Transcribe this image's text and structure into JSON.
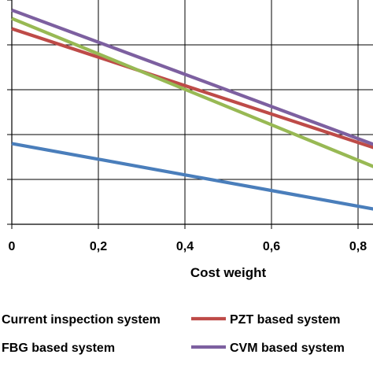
{
  "chart_data": {
    "type": "line",
    "title": "",
    "xlabel": "Cost weight",
    "ylabel": "",
    "x": [
      0,
      0.2,
      0.4,
      0.6,
      0.8,
      0.85
    ],
    "x_tick_labels": [
      "0",
      "0,2",
      "0,4",
      "0,6",
      "0,8"
    ],
    "xlim": [
      0,
      0.85
    ],
    "ylim": [
      0,
      1.0
    ],
    "grid": true,
    "legend_position": "bottom",
    "series": [
      {
        "name": "Current inspection system",
        "color": "#4a7ebb",
        "x": [
          0,
          0.85
        ],
        "values": [
          0.36,
          0.063
        ]
      },
      {
        "name": "PZT based system",
        "color": "#be4b48",
        "x": [
          0,
          0.85
        ],
        "values": [
          0.872,
          0.333
        ]
      },
      {
        "name": "FBG based system",
        "color": "#98b954",
        "x": [
          0,
          0.85
        ],
        "values": [
          0.918,
          0.246
        ]
      },
      {
        "name": "CVM based system",
        "color": "#7d60a0",
        "x": [
          0,
          0.85
        ],
        "values": [
          0.955,
          0.346
        ]
      }
    ]
  }
}
